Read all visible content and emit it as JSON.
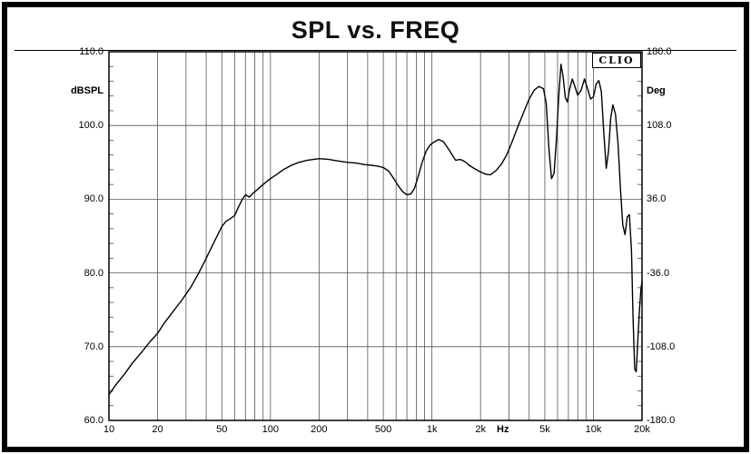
{
  "chart_data": {
    "type": "line",
    "title": "SPL vs. FREQ",
    "brand": "CLIO",
    "ylabel_left": "dBSPL",
    "ylabel_right": "Deg",
    "x_unit": "Hz",
    "x_scale": "log",
    "x_range": [
      10,
      20000
    ],
    "grid": true,
    "y_left": {
      "label": "dBSPL",
      "range": [
        60,
        110
      ],
      "ticks": [
        "110.0",
        "100.0",
        "90.0",
        "80.0",
        "70.0",
        "60.0"
      ]
    },
    "y_right": {
      "label": "Deg",
      "range": [
        -180,
        180
      ],
      "ticks": [
        "180.0",
        "108.0",
        "36.0",
        "-36.0",
        "-108.0",
        "-180.0"
      ]
    },
    "x_ticks": [
      {
        "f": 10,
        "label": "10"
      },
      {
        "f": 20,
        "label": "20"
      },
      {
        "f": 50,
        "label": "50"
      },
      {
        "f": 100,
        "label": "100"
      },
      {
        "f": 200,
        "label": "200"
      },
      {
        "f": 500,
        "label": "500"
      },
      {
        "f": 1000,
        "label": "1k"
      },
      {
        "f": 2000,
        "label": "2k"
      },
      {
        "f": 5000,
        "label": "5k"
      },
      {
        "f": 10000,
        "label": "10k"
      },
      {
        "f": 20000,
        "label": "20k"
      }
    ],
    "series": [
      {
        "name": "SPL",
        "color": "#000000",
        "points": [
          [
            10,
            63.5
          ],
          [
            11,
            64.8
          ],
          [
            12.5,
            66.3
          ],
          [
            14,
            67.8
          ],
          [
            16,
            69.3
          ],
          [
            18,
            70.7
          ],
          [
            20,
            71.8
          ],
          [
            22,
            73.2
          ],
          [
            25,
            74.8
          ],
          [
            28,
            76.2
          ],
          [
            32,
            78.0
          ],
          [
            36,
            80.0
          ],
          [
            40,
            82.0
          ],
          [
            45,
            84.3
          ],
          [
            48,
            85.5
          ],
          [
            50,
            86.3
          ],
          [
            53,
            87.0
          ],
          [
            56,
            87.3
          ],
          [
            60,
            87.8
          ],
          [
            63,
            88.8
          ],
          [
            67,
            90.0
          ],
          [
            70,
            90.6
          ],
          [
            74,
            90.3
          ],
          [
            78,
            90.8
          ],
          [
            85,
            91.5
          ],
          [
            90,
            92.0
          ],
          [
            100,
            92.8
          ],
          [
            110,
            93.4
          ],
          [
            120,
            94.0
          ],
          [
            135,
            94.6
          ],
          [
            150,
            95.0
          ],
          [
            170,
            95.3
          ],
          [
            200,
            95.5
          ],
          [
            230,
            95.4
          ],
          [
            260,
            95.2
          ],
          [
            300,
            95.0
          ],
          [
            340,
            94.9
          ],
          [
            380,
            94.7
          ],
          [
            420,
            94.6
          ],
          [
            460,
            94.5
          ],
          [
            500,
            94.3
          ],
          [
            540,
            93.8
          ],
          [
            580,
            92.8
          ],
          [
            620,
            91.8
          ],
          [
            660,
            91.0
          ],
          [
            700,
            90.6
          ],
          [
            740,
            90.7
          ],
          [
            780,
            91.5
          ],
          [
            820,
            93.0
          ],
          [
            870,
            95.0
          ],
          [
            920,
            96.5
          ],
          [
            970,
            97.3
          ],
          [
            1020,
            97.7
          ],
          [
            1100,
            98.1
          ],
          [
            1180,
            97.8
          ],
          [
            1250,
            97.0
          ],
          [
            1320,
            96.2
          ],
          [
            1400,
            95.3
          ],
          [
            1500,
            95.4
          ],
          [
            1600,
            95.1
          ],
          [
            1700,
            94.6
          ],
          [
            1850,
            94.1
          ],
          [
            2000,
            93.7
          ],
          [
            2150,
            93.4
          ],
          [
            2300,
            93.3
          ],
          [
            2500,
            93.9
          ],
          [
            2700,
            94.8
          ],
          [
            2900,
            96.0
          ],
          [
            3100,
            97.5
          ],
          [
            3400,
            99.8
          ],
          [
            3700,
            101.8
          ],
          [
            4000,
            103.6
          ],
          [
            4300,
            104.8
          ],
          [
            4600,
            105.3
          ],
          [
            4900,
            105.0
          ],
          [
            5100,
            103.0
          ],
          [
            5300,
            97.0
          ],
          [
            5500,
            92.8
          ],
          [
            5700,
            93.5
          ],
          [
            5900,
            98.0
          ],
          [
            6100,
            104.0
          ],
          [
            6300,
            108.3
          ],
          [
            6500,
            106.5
          ],
          [
            6700,
            103.8
          ],
          [
            6900,
            103.2
          ],
          [
            7100,
            104.8
          ],
          [
            7400,
            106.3
          ],
          [
            7700,
            105.2
          ],
          [
            8000,
            104.1
          ],
          [
            8400,
            104.8
          ],
          [
            8800,
            106.3
          ],
          [
            9200,
            105.0
          ],
          [
            9600,
            103.6
          ],
          [
            10000,
            103.9
          ],
          [
            10400,
            105.6
          ],
          [
            10800,
            106.1
          ],
          [
            11200,
            104.6
          ],
          [
            11600,
            99.0
          ],
          [
            12000,
            94.2
          ],
          [
            12400,
            96.5
          ],
          [
            12800,
            101.0
          ],
          [
            13200,
            102.8
          ],
          [
            13700,
            101.5
          ],
          [
            14200,
            97.5
          ],
          [
            14700,
            91.5
          ],
          [
            15200,
            86.5
          ],
          [
            15700,
            85.2
          ],
          [
            16200,
            87.6
          ],
          [
            16700,
            87.9
          ],
          [
            17200,
            83.0
          ],
          [
            17600,
            74.0
          ],
          [
            18000,
            67.0
          ],
          [
            18400,
            66.6
          ],
          [
            18800,
            70.5
          ],
          [
            19300,
            75.0
          ],
          [
            19700,
            77.8
          ],
          [
            20000,
            78.9
          ]
        ]
      }
    ]
  }
}
